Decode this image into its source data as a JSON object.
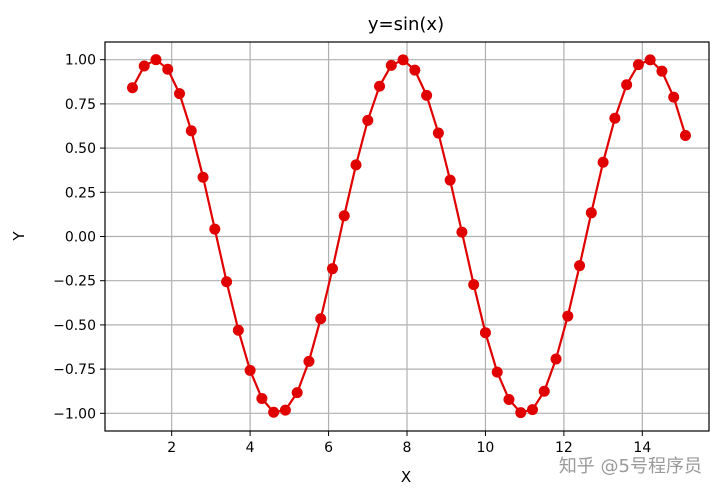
{
  "chart_data": {
    "type": "line",
    "title": "y=sin(x)",
    "xlabel": "X",
    "ylabel": "Y",
    "xlim": [
      0.3,
      15.7
    ],
    "ylim": [
      -1.1,
      1.1
    ],
    "xticks": [
      2,
      4,
      6,
      8,
      10,
      12,
      14
    ],
    "xtick_labels": [
      "2",
      "4",
      "6",
      "8",
      "10",
      "12",
      "14"
    ],
    "yticks": [
      1.0,
      0.75,
      0.5,
      0.25,
      0.0,
      -0.25,
      -0.5,
      -0.75,
      -1.0
    ],
    "ytick_labels": [
      "1.00",
      "0.75",
      "0.50",
      "0.25",
      "0.00",
      "−0.25",
      "−0.50",
      "−0.75",
      "−1.00"
    ],
    "grid": true,
    "series": [
      {
        "color": "#e00000",
        "marker": "circle",
        "x": [
          1.0,
          1.3,
          1.6,
          1.9,
          2.2,
          2.5,
          2.8,
          3.1,
          3.4,
          3.7,
          4.0,
          4.3,
          4.6,
          4.9,
          5.2,
          5.5,
          5.8,
          6.1,
          6.4,
          6.7,
          7.0,
          7.3,
          7.6,
          7.9,
          8.2,
          8.5,
          8.8,
          9.1,
          9.4,
          9.7,
          10.0,
          10.3,
          10.6,
          10.9,
          11.2,
          11.5,
          11.8,
          12.1,
          12.4,
          12.7,
          13.0,
          13.3,
          13.6,
          13.9,
          14.2,
          14.5,
          14.8,
          15.1
        ],
        "y": [
          0.841,
          0.964,
          1.0,
          0.946,
          0.808,
          0.598,
          0.335,
          0.042,
          -0.256,
          -0.53,
          -0.757,
          -0.916,
          -0.994,
          -0.982,
          -0.883,
          -0.706,
          -0.465,
          -0.182,
          0.117,
          0.405,
          0.657,
          0.85,
          0.968,
          0.999,
          0.941,
          0.798,
          0.585,
          0.319,
          0.025,
          -0.272,
          -0.544,
          -0.767,
          -0.922,
          -0.996,
          -0.979,
          -0.875,
          -0.693,
          -0.45,
          -0.165,
          0.134,
          0.42,
          0.669,
          0.858,
          0.972,
          0.999,
          0.935,
          0.788,
          0.571
        ]
      }
    ]
  },
  "watermark": "知乎 @5号程序员"
}
